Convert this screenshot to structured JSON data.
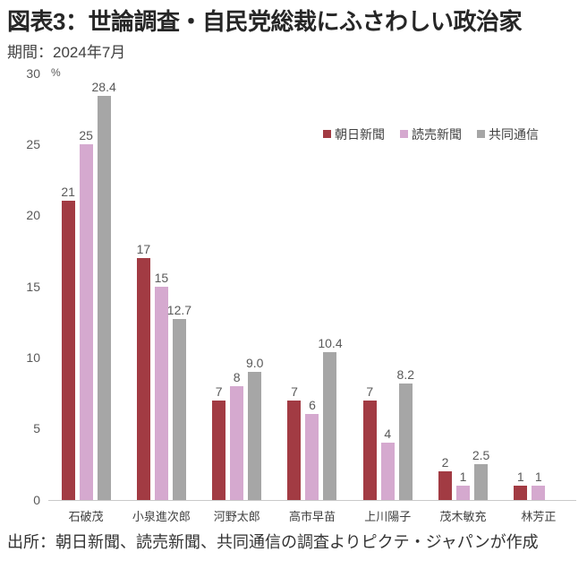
{
  "title": "図表3：世論調査・自民党総裁にふさわしい政治家",
  "subtitle": "期間：2024年7月",
  "source": "出所：朝日新聞、読売新聞、共同通信の調査よりピクテ・ジャパンが作成",
  "chart_data": {
    "type": "bar",
    "title": "図表3：世論調査・自民党総裁にふさわしい政治家",
    "subtitle": "期間：2024年7月",
    "categories": [
      "石破茂",
      "小泉進次郎",
      "河野太郎",
      "高市早苗",
      "上川陽子",
      "茂木敏充",
      "林芳正"
    ],
    "series": [
      {
        "name": "朝日新聞",
        "color": "#a23b43",
        "values": [
          21,
          17,
          7,
          7,
          7,
          2,
          1
        ],
        "labels": [
          "21",
          "17",
          "7",
          "7",
          "7",
          "2",
          "1"
        ]
      },
      {
        "name": "読売新聞",
        "color": "#d5a9cf",
        "values": [
          25,
          15,
          8,
          6,
          4,
          1,
          1
        ],
        "labels": [
          "25",
          "15",
          "8",
          "6",
          "4",
          "1",
          "1"
        ]
      },
      {
        "name": "共同通信",
        "color": "#a6a6a6",
        "values": [
          28.4,
          12.7,
          9.0,
          10.4,
          8.2,
          2.5,
          null
        ],
        "labels": [
          "28.4",
          "12.7",
          "9.0",
          "10.4",
          "8.2",
          "2.5",
          ""
        ]
      }
    ],
    "ylabel_unit": "%",
    "yticks": [
      0,
      5,
      10,
      15,
      20,
      25,
      30
    ],
    "ylim": [
      0,
      30
    ],
    "grid": false,
    "legend_position": "inside-top-right"
  }
}
